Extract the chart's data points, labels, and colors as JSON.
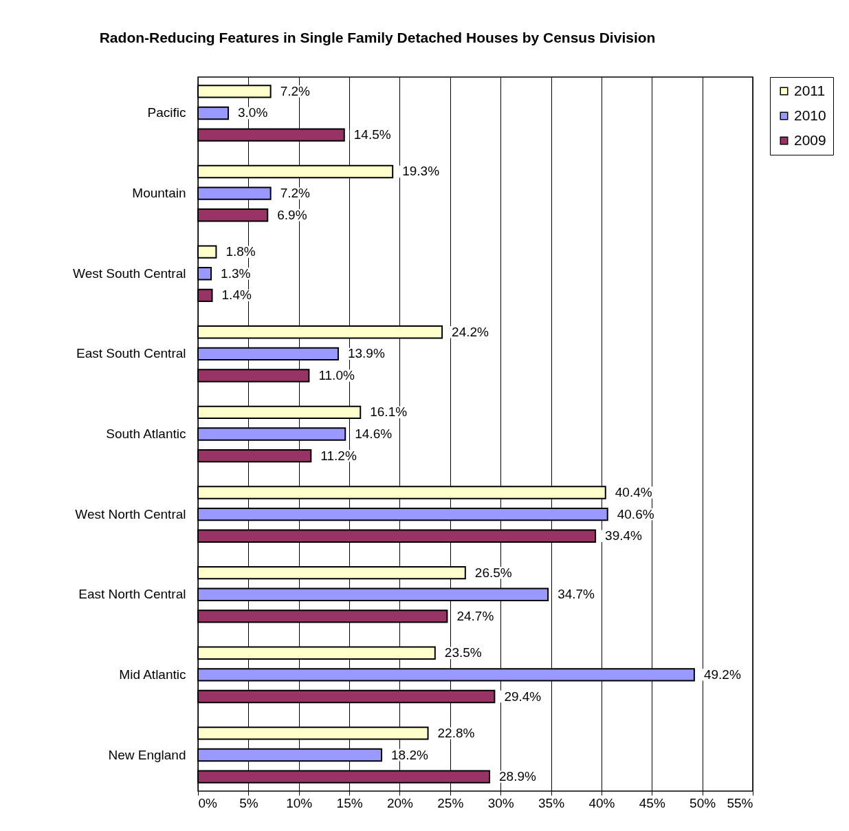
{
  "chart_data": {
    "type": "bar",
    "orientation": "horizontal",
    "title": "Radon-Reducing Features in Single Family Detached Houses by Census Division",
    "categories": [
      "Pacific",
      "Mountain",
      "West South Central",
      "East South Central",
      "South Atlantic",
      "West North Central",
      "East North Central",
      "Mid Atlantic",
      "New England"
    ],
    "series": [
      {
        "name": "2011",
        "color": "#ffffcc",
        "values": [
          7.2,
          19.3,
          1.8,
          24.2,
          16.1,
          40.4,
          26.5,
          23.5,
          22.8
        ],
        "value_labels": [
          "7.2%",
          "19.3%",
          "1.8%",
          "24.2%",
          "16.1%",
          "40.4%",
          "26.5%",
          "23.5%",
          "22.8%"
        ]
      },
      {
        "name": "2010",
        "color": "#9999ff",
        "values": [
          3.0,
          7.2,
          1.3,
          13.9,
          14.6,
          40.6,
          34.7,
          49.2,
          18.2
        ],
        "value_labels": [
          "3.0%",
          "7.2%",
          "1.3%",
          "13.9%",
          "14.6%",
          "40.6%",
          "34.7%",
          "49.2%",
          "18.2%"
        ]
      },
      {
        "name": "2009",
        "color": "#993366",
        "values": [
          14.5,
          6.9,
          1.4,
          11.0,
          11.2,
          39.4,
          24.7,
          29.4,
          28.9
        ],
        "value_labels": [
          "14.5%",
          "6.9%",
          "1.4%",
          "11.0%",
          "11.2%",
          "39.4%",
          "24.7%",
          "29.4%",
          "28.9%"
        ]
      }
    ],
    "xlim": [
      0,
      55
    ],
    "xticks": [
      {
        "value": 0,
        "label": "0%"
      },
      {
        "value": 5,
        "label": "5%"
      },
      {
        "value": 10,
        "label": "10%"
      },
      {
        "value": 15,
        "label": "15%"
      },
      {
        "value": 20,
        "label": "20%"
      },
      {
        "value": 25,
        "label": "25%"
      },
      {
        "value": 30,
        "label": "30%"
      },
      {
        "value": 35,
        "label": "35%"
      },
      {
        "value": 40,
        "label": "40%"
      },
      {
        "value": 45,
        "label": "45%"
      },
      {
        "value": 50,
        "label": "50%"
      },
      {
        "value": 55,
        "label": "55%"
      }
    ],
    "grid": "x",
    "legend": "top right"
  }
}
